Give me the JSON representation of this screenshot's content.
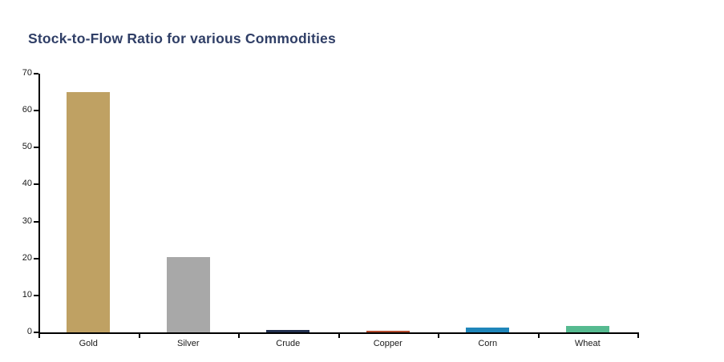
{
  "chart_data": {
    "type": "bar",
    "title": "Stock-to-Flow Ratio for various Commodities",
    "categories": [
      "Gold",
      "Silver",
      "Crude",
      "Copper",
      "Corn",
      "Wheat"
    ],
    "values": [
      65,
      20.3,
      0.7,
      0.4,
      1.4,
      1.8
    ],
    "bar_colors": [
      "#BFA163",
      "#A8A8A8",
      "#21304F",
      "#B34A2D",
      "#1F86BA",
      "#56BA90"
    ],
    "xlabel": "",
    "ylabel": "",
    "ylim": [
      0,
      70
    ],
    "yticks": [
      0,
      10,
      20,
      30,
      40,
      50,
      60,
      70
    ],
    "grid": "off",
    "legend": "none",
    "title_color": "#2F3E66",
    "axis_color": "#000000",
    "tick_label_color": "#1a1a1a"
  }
}
